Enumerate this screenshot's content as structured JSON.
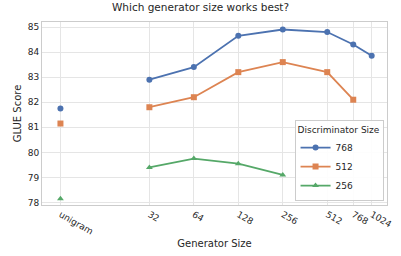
{
  "chart_data": {
    "type": "line",
    "title": "Which generator size works best?",
    "x_label": "Generator Size",
    "y_label": "GLUE Score",
    "log": "x",
    "x": [
      32,
      64,
      128,
      256,
      512,
      768,
      1024
    ],
    "baseline_x": 8,
    "xlim": [
      6,
      1300
    ],
    "xticks": [
      {
        "value": 8,
        "label": "unigram"
      },
      32,
      64,
      128,
      256,
      512,
      768,
      1024
    ],
    "ylim": [
      77.9,
      85.2
    ],
    "yticks": [
      78,
      79,
      80,
      81,
      82,
      83,
      84,
      85
    ],
    "grid": true,
    "legend": "lower right",
    "legend_title": "Discriminator Size",
    "series": [
      {
        "name": "768",
        "color": "#4c72b0",
        "marker": "circle",
        "baseline_value": 81.75,
        "values": [
          82.9,
          83.4,
          84.65,
          84.9,
          84.8,
          84.3,
          83.85
        ]
      },
      {
        "name": "512",
        "color": "#dd8452",
        "marker": "square",
        "baseline_value": 81.15,
        "values": [
          81.8,
          82.2,
          83.2,
          83.6,
          83.2,
          82.1,
          null
        ]
      },
      {
        "name": "256",
        "color": "#55a868",
        "marker": "triangle-up",
        "baseline_value": 78.15,
        "values": [
          79.4,
          79.75,
          79.55,
          79.1,
          null,
          null,
          null
        ]
      }
    ]
  }
}
